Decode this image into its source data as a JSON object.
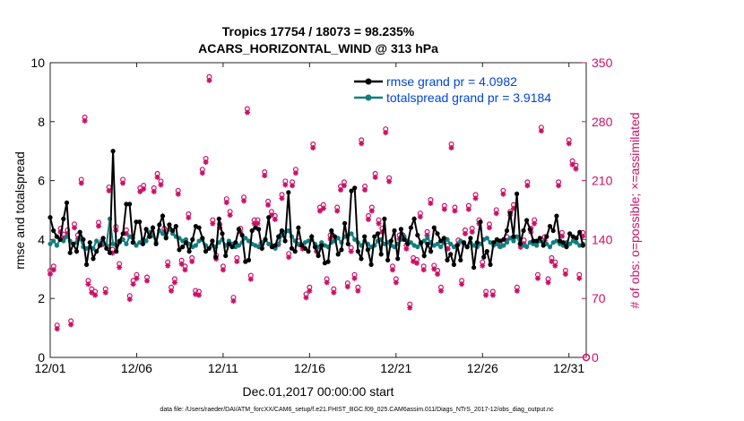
{
  "chart_data": {
    "type": "line",
    "title_line1": "Tropics 17754 / 18073 = 98.235%",
    "title_line2": "ACARS_HORIZONTAL_WIND @ 313 hPa",
    "xlabel": "Dec.01,2017 00:00:00 start",
    "ylabel_left": "rmse and totalspread",
    "ylabel_right": "# of obs: o=possible; ×=assimilated",
    "footnote": "data file: /Users/raeder/DAI/ATM_forcXX/CAM6_setup/f.e21.FHIST_BGC.f09_025.CAM6assim.011/Diags_NTrS_2017-12/obs_diag_output.nc",
    "xlim": [
      1,
      32
    ],
    "ylim_left": [
      0,
      10
    ],
    "ylim_right": [
      0,
      350
    ],
    "x_ticks": [
      1,
      6,
      11,
      16,
      21,
      26,
      31
    ],
    "x_tick_labels": [
      "12/01",
      "12/06",
      "12/11",
      "12/16",
      "12/21",
      "12/26",
      "12/31"
    ],
    "y_left_ticks": [
      "0",
      "2",
      "4",
      "6",
      "8",
      "10"
    ],
    "y_right_ticks": [
      "0",
      "70",
      "140",
      "210",
      "280",
      "350"
    ],
    "colors": {
      "rmse": "#000000",
      "spread": "#0f7f7f",
      "obs": "#cc1166",
      "legend_text": "#0044dd",
      "axis": "#222222"
    },
    "series": [
      {
        "name": "rmse grand pr = 4.0982",
        "values": [
          4.75,
          4.3,
          4.1,
          4.0,
          4.7,
          5.25,
          3.55,
          3.85,
          3.6,
          4.25,
          4.0,
          3.15,
          3.9,
          3.35,
          3.6,
          3.8,
          4.05,
          3.7,
          3.55,
          7.0,
          3.6,
          3.95,
          4.2,
          5.2,
          5.2,
          3.9,
          4.6,
          4.6,
          3.85,
          4.35,
          4.1,
          4.4,
          3.85,
          4.5,
          4.8,
          4.05,
          4.5,
          4.3,
          4.45,
          3.65,
          3.75,
          3.9,
          3.6,
          4.0,
          4.45,
          4.4,
          4.05,
          3.6,
          3.7,
          3.95,
          3.4,
          4.7,
          4.2,
          3.45,
          3.85,
          3.75,
          3.9,
          4.35,
          4.15,
          3.25,
          3.3,
          4.3,
          4.4,
          4.35,
          3.7,
          4.0,
          4.75,
          3.75,
          3.8,
          4.1,
          4.3,
          3.95,
          5.6,
          3.7,
          3.6,
          4.4,
          3.8,
          3.7,
          3.6,
          4.1,
          3.75,
          3.45,
          3.8,
          3.2,
          3.25,
          4.3,
          4.1,
          3.5,
          3.65,
          4.55,
          3.85,
          5.65,
          5.75,
          3.6,
          3.35,
          4.1,
          3.65,
          3.15,
          4.1,
          4.2,
          3.5,
          4.7,
          3.3,
          3.95,
          4.3,
          3.35,
          4.35,
          4.0,
          3.85,
          4.4,
          4.7,
          4.15,
          3.9,
          3.45,
          3.85,
          3.6,
          4.4,
          4.2,
          3.95,
          4.05,
          3.3,
          3.5,
          3.15,
          3.8,
          3.3,
          3.9,
          3.75,
          4.05,
          3.05,
          3.9,
          4.6,
          3.4,
          3.6,
          3.15,
          3.9,
          4.0,
          3.95,
          4.0,
          4.3,
          4.9,
          4.1,
          5.55,
          3.85,
          4.3,
          4.65,
          4.35,
          3.95,
          3.95,
          4.05,
          3.8,
          4.1,
          4.45,
          4.3,
          4.8,
          3.95,
          3.9,
          3.75,
          4.2,
          4.1,
          4.05,
          4.25,
          3.8
        ],
        "color": "rmse"
      },
      {
        "name": "totalspread grand pr = 3.9184",
        "values": [
          3.85,
          3.95,
          3.8,
          4.0,
          3.95,
          4.1,
          3.95,
          3.85,
          3.9,
          4.05,
          3.75,
          3.7,
          3.75,
          3.7,
          3.95,
          3.85,
          3.9,
          3.8,
          4.7,
          3.85,
          3.8,
          3.9,
          4.0,
          3.85,
          4.1,
          4.05,
          3.8,
          3.9,
          4.0,
          3.95,
          4.25,
          4.15,
          3.9,
          4.3,
          4.2,
          4.1,
          4.35,
          4.2,
          4.1,
          4.05,
          3.95,
          4.0,
          3.85,
          3.75,
          3.8,
          3.95,
          4.0,
          3.8,
          3.7,
          3.8,
          3.75,
          3.9,
          4.0,
          3.8,
          3.95,
          3.85,
          3.75,
          3.8,
          3.9,
          4.05,
          3.95,
          3.85,
          3.8,
          3.75,
          3.9,
          4.0,
          3.85,
          3.8,
          3.7,
          3.85,
          4.15,
          4.25,
          4.3,
          4.1,
          3.95,
          3.85,
          3.8,
          3.9,
          3.95,
          4.0,
          3.85,
          3.75,
          3.9,
          3.8,
          3.75,
          3.9,
          3.95,
          4.05,
          3.9,
          4.1,
          4.15,
          4.2,
          4.0,
          3.9,
          3.8,
          3.95,
          3.85,
          3.75,
          3.8,
          3.95,
          4.0,
          3.85,
          3.9,
          3.8,
          3.75,
          3.85,
          4.0,
          4.1,
          3.95,
          3.9,
          3.8,
          3.75,
          3.85,
          3.95,
          4.05,
          3.9,
          3.8,
          3.85,
          3.75,
          3.9,
          4.0,
          3.85,
          3.75,
          3.8,
          3.95,
          3.85,
          3.75,
          3.9,
          3.8,
          3.75,
          3.85,
          4.0,
          4.05,
          3.9,
          3.8,
          3.85,
          3.75,
          3.8,
          3.9,
          4.05,
          3.95,
          4.1,
          3.85,
          3.8,
          3.75,
          3.9,
          3.85,
          3.8,
          3.95,
          3.9,
          3.85,
          3.75,
          3.9,
          3.95,
          3.85,
          3.8,
          3.9,
          3.85,
          3.95,
          3.9,
          3.8,
          3.85
        ],
        "color": "spread"
      }
    ],
    "obs_series": {
      "name": "observation counts",
      "x": [
        1.0,
        1.2,
        1.4,
        1.6,
        1.8,
        2.0,
        2.2,
        2.4,
        2.6,
        2.8,
        3.0,
        3.2,
        3.4,
        3.6,
        3.8,
        4.0,
        4.2,
        4.4,
        4.6,
        4.8,
        5.0,
        5.2,
        5.4,
        5.6,
        5.8,
        6.0,
        6.2,
        6.4,
        6.6,
        6.8,
        7.0,
        7.2,
        7.4,
        7.6,
        7.8,
        8.0,
        8.2,
        8.4,
        8.6,
        8.8,
        9.0,
        9.2,
        9.4,
        9.6,
        9.8,
        10.0,
        10.2,
        10.4,
        10.6,
        10.8,
        11.0,
        11.2,
        11.4,
        11.6,
        11.8,
        12.0,
        12.2,
        12.4,
        12.6,
        12.8,
        13.0,
        13.2,
        13.4,
        13.6,
        13.8,
        14.0,
        14.2,
        14.4,
        14.6,
        14.8,
        15.0,
        15.2,
        15.4,
        15.6,
        15.8,
        16.0,
        16.2,
        16.4,
        16.6,
        16.8,
        17.0,
        17.2,
        17.4,
        17.6,
        17.8,
        18.0,
        18.2,
        18.4,
        18.6,
        18.8,
        19.0,
        19.2,
        19.4,
        19.6,
        19.8,
        20.0,
        20.2,
        20.4,
        20.6,
        20.8,
        21.0,
        21.2,
        21.4,
        21.6,
        21.8,
        22.0,
        22.2,
        22.4,
        22.6,
        22.8,
        23.0,
        23.2,
        23.4,
        23.6,
        23.8,
        24.0,
        24.2,
        24.4,
        24.6,
        24.8,
        25.0,
        25.2,
        25.4,
        25.6,
        25.8,
        26.0,
        26.2,
        26.4,
        26.6,
        26.8,
        27.0,
        27.2,
        27.4,
        27.6,
        27.8,
        28.0,
        28.2,
        28.4,
        28.6,
        28.8,
        29.0,
        29.2,
        29.4,
        29.6,
        29.8,
        30.0,
        30.2,
        30.4,
        30.6,
        30.8,
        31.0,
        31.2,
        31.4,
        31.6,
        31.8
      ],
      "values": [
        100,
        105,
        35,
        150,
        143,
        148,
        40,
        155,
        142,
        208,
        282,
        88,
        78,
        75,
        157,
        135,
        78,
        199,
        125,
        152,
        108,
        208,
        148,
        70,
        88,
        95,
        198,
        201,
        92,
        145,
        198,
        215,
        206,
        150,
        110,
        80,
        90,
        195,
        112,
        105,
        167,
        115,
        76,
        75,
        220,
        233,
        330,
        160,
        118,
        155,
        105,
        185,
        170,
        68,
        115,
        150,
        187,
        292,
        94,
        160,
        160,
        132,
        217,
        182,
        170,
        165,
        135,
        190,
        206,
        120,
        205,
        220,
        135,
        130,
        72,
        80,
        250,
        127,
        175,
        178,
        90,
        142,
        78,
        175,
        200,
        205,
        85,
        127,
        95,
        80,
        255,
        200,
        165,
        175,
        215,
        160,
        150,
        268,
        210,
        105,
        90,
        142,
        142,
        130,
        60,
        115,
        113,
        168,
        105,
        146,
        184,
        106,
        100,
        80,
        177,
        130,
        250,
        175,
        136,
        88,
        148,
        177,
        150,
        190,
        160,
        110,
        75,
        155,
        75,
        172,
        133,
        195,
        140,
        170,
        178,
        80,
        132,
        136,
        205,
        150,
        160,
        95,
        270,
        140,
        90,
        115,
        110,
        205,
        145,
        100,
        255,
        230,
        225,
        95,
        145
      ]
    },
    "legend": {
      "rmse_label": "rmse grand pr = 4.0982",
      "spread_label": "totalspread grand pr = 3.9184"
    }
  }
}
